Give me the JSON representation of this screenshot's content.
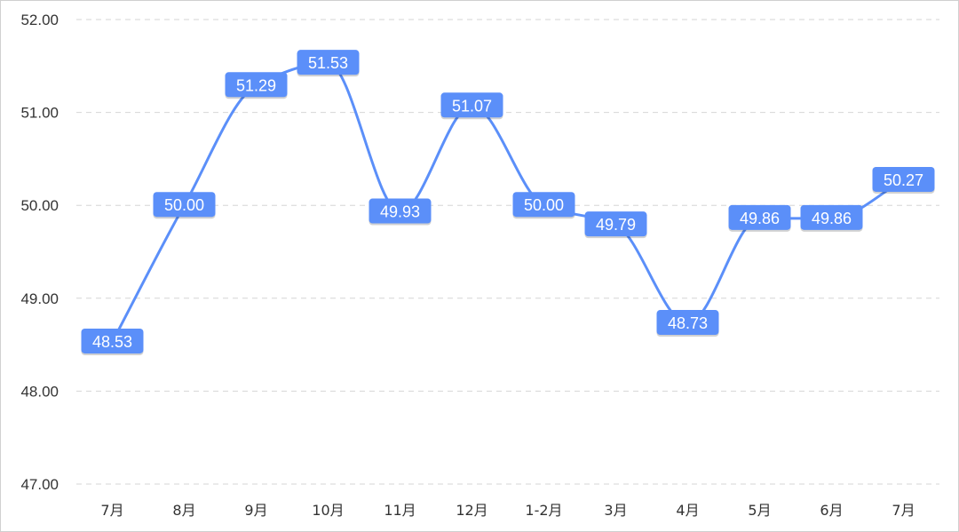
{
  "chart_data": {
    "type": "line",
    "title": "",
    "xlabel": "",
    "ylabel": "",
    "categories": [
      "7月",
      "8月",
      "9月",
      "10月",
      "11月",
      "12月",
      "1-2月",
      "3月",
      "4月",
      "5月",
      "6月",
      "7月"
    ],
    "series": [
      {
        "values": [
          48.53,
          50.0,
          51.29,
          51.53,
          49.93,
          51.07,
          50.0,
          49.79,
          48.73,
          49.86,
          49.86,
          50.27
        ],
        "labels": [
          "48.53",
          "50.00",
          "51.29",
          "51.53",
          "49.93",
          "51.07",
          "50.00",
          "49.79",
          "48.73",
          "49.86",
          "49.86",
          "50.27"
        ]
      }
    ],
    "ylim": [
      47.0,
      52.0
    ],
    "yticks": [
      "47.00",
      "48.00",
      "49.00",
      "50.00",
      "51.00",
      "52.00"
    ],
    "grid": true,
    "smooth": true,
    "line_color": "#5b8ff9",
    "label_bg_color": "#5b8ff9",
    "label_text_color": "#ffffff"
  }
}
